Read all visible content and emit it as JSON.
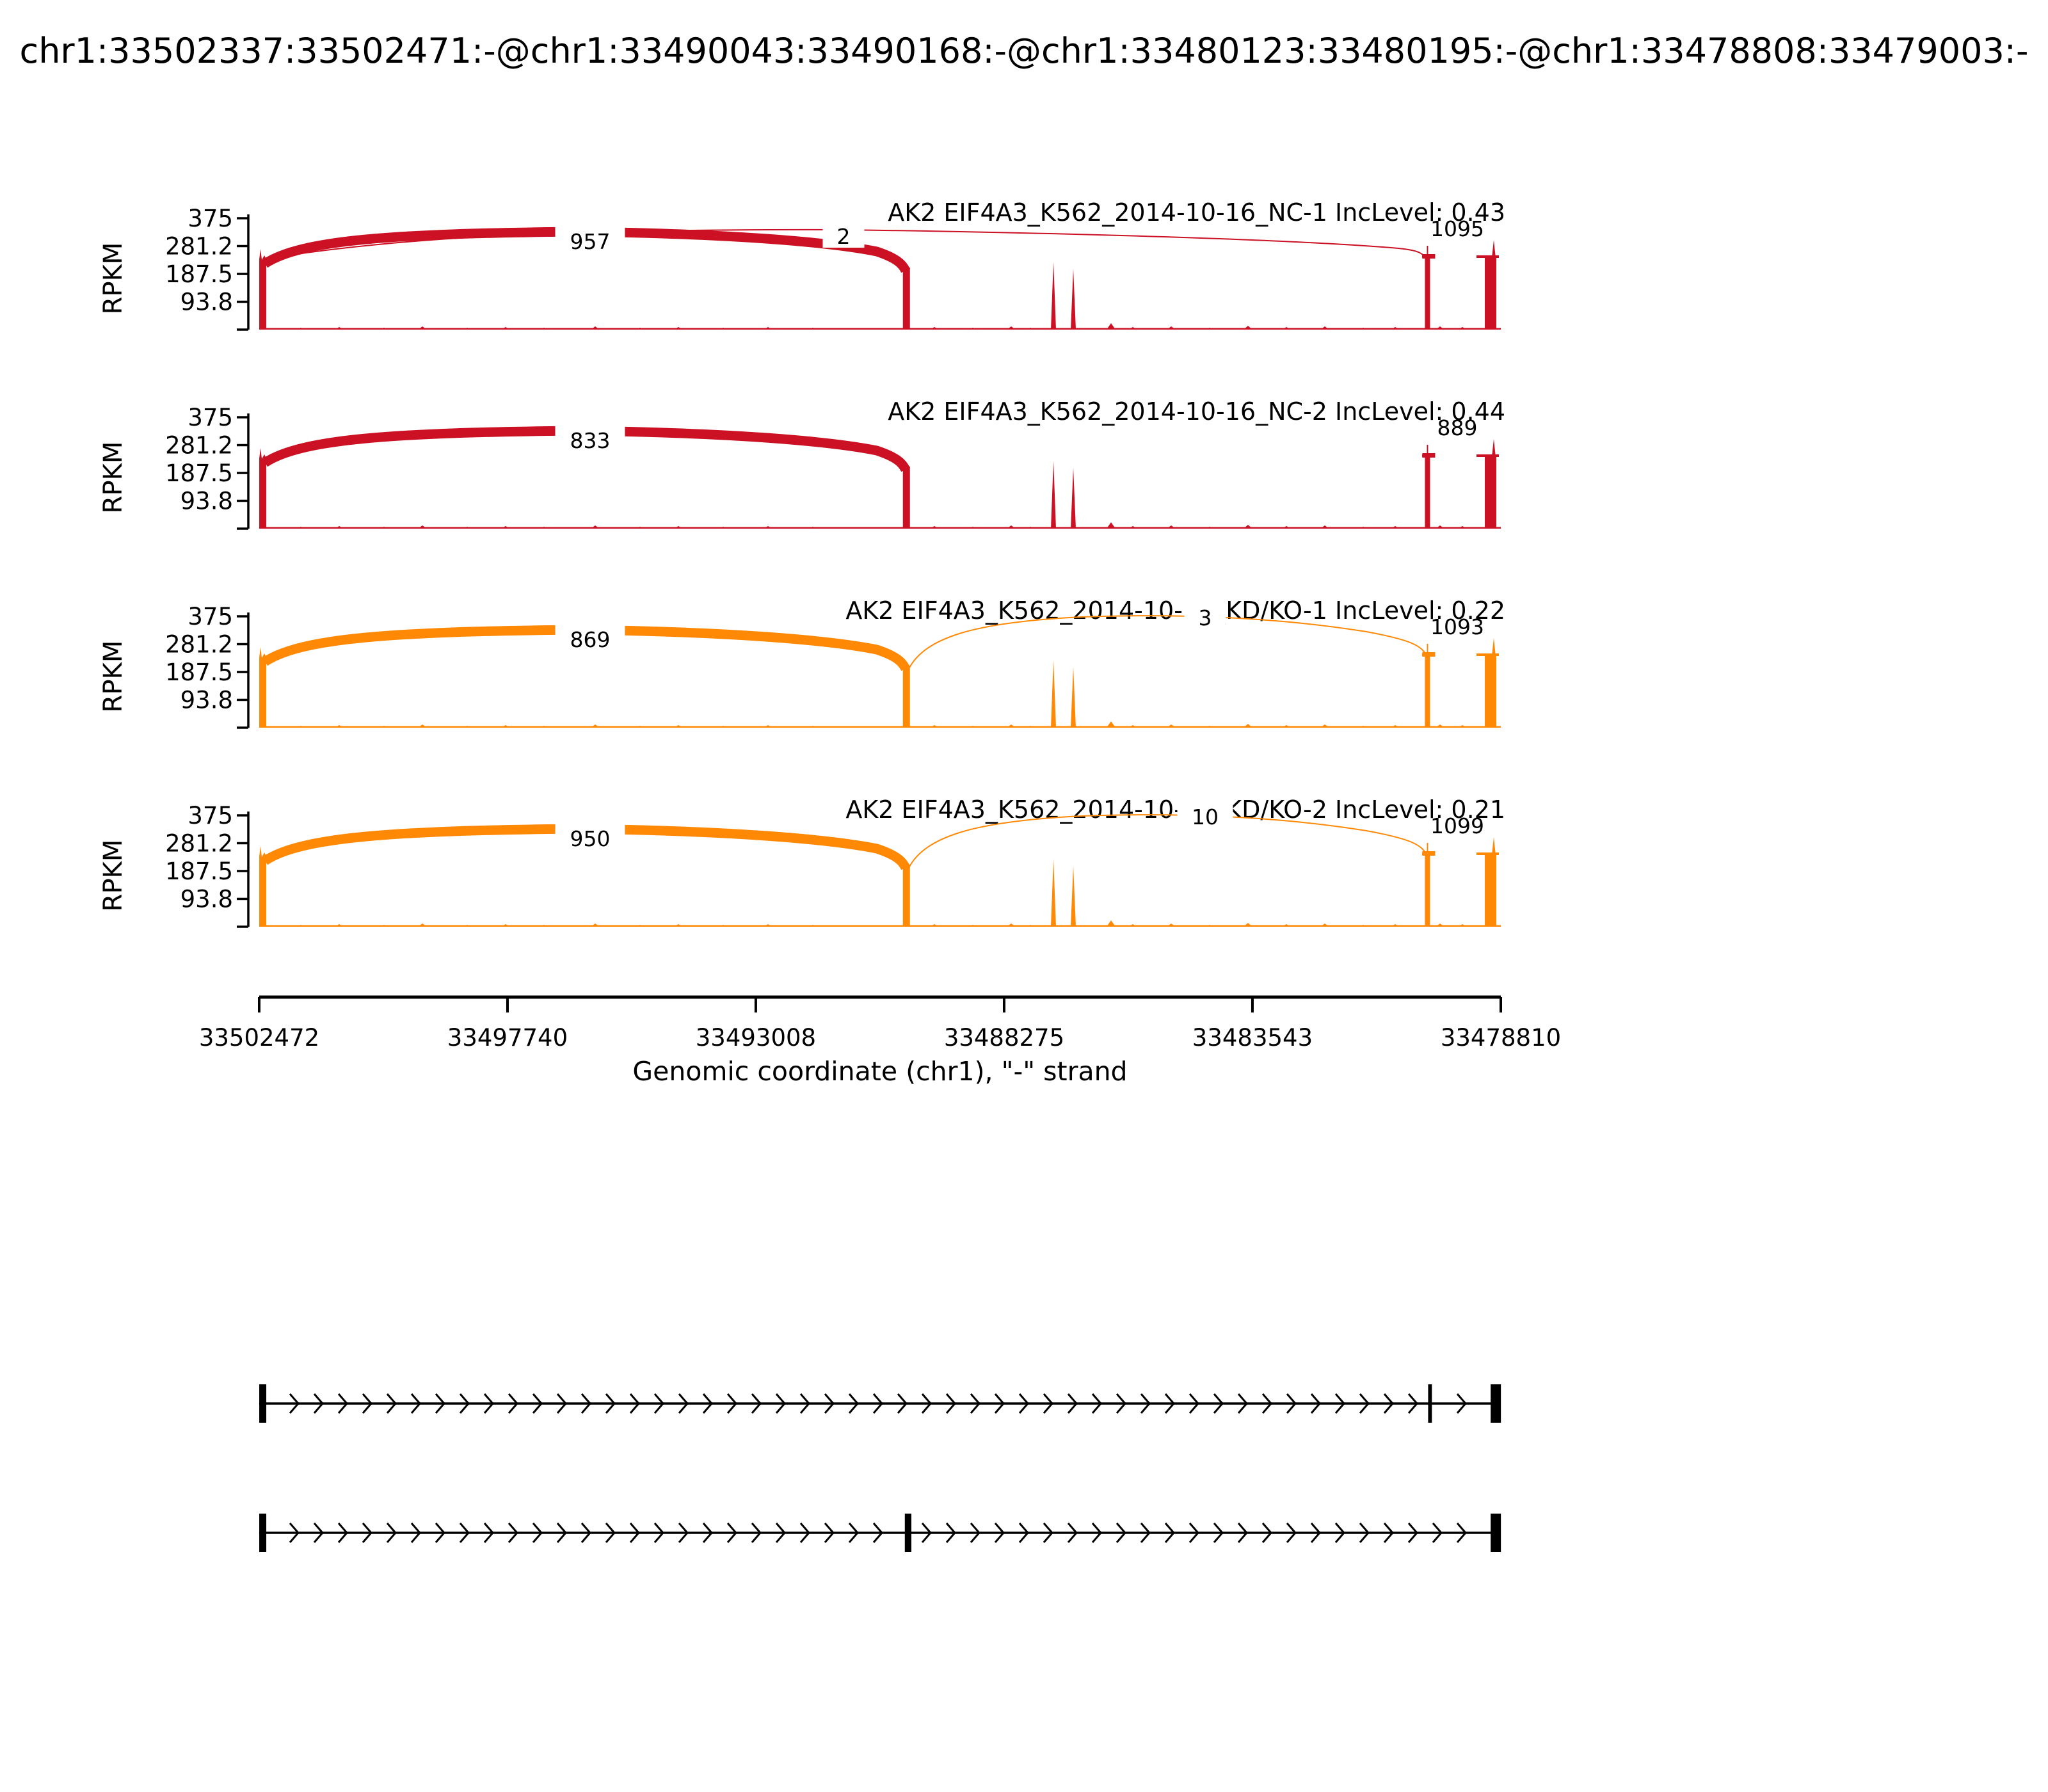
{
  "title": "chr1:33502337:33502471:-@chr1:33490043:33490168:-@chr1:33480123:33480195:-@chr1:33478808:33479003:-",
  "chart_data": {
    "type": "sashimi",
    "gene": "AK2",
    "chromosome": "chr1",
    "strand": "-",
    "xlabel": "Genomic coordinate (chr1), \"-\" strand",
    "ylabel": "RPKM",
    "ymax_rpkm": 375,
    "ytick_labels": [
      "375",
      "281.2",
      "187.5",
      "93.8"
    ],
    "xticks": [
      33502472,
      33497740,
      33493008,
      33488275,
      33483543,
      33478810
    ],
    "x_range_bp": [
      33502472,
      33478810
    ],
    "exons_bp": {
      "upstream": [
        33502337,
        33502471
      ],
      "mxe_exon_1": [
        33490043,
        33490168
      ],
      "mxe_exon_2": [
        33480123,
        33480195
      ],
      "downstream": [
        33478808,
        33479003
      ]
    },
    "tracks": [
      {
        "id": "NC-1",
        "label": "AK2 EIF4A3_K562_2014-10-16_NC-1 IncLevel: 0.43",
        "inc_level": "0.43",
        "color": "#CB1123",
        "junctions": [
          {
            "from": "upstream",
            "to": "mxe_exon_1",
            "count": 957,
            "style": "thick"
          },
          {
            "from": "upstream",
            "to": "mxe_exon_2",
            "count": 2,
            "style": "hairline-low"
          },
          {
            "from": "mxe_exon_2",
            "to": "downstream",
            "count": 1095,
            "style": "staple"
          }
        ]
      },
      {
        "id": "NC-2",
        "label": "AK2 EIF4A3_K562_2014-10-16_NC-2 IncLevel: 0.44",
        "inc_level": "0.44",
        "color": "#CB1123",
        "junctions": [
          {
            "from": "upstream",
            "to": "mxe_exon_1",
            "count": 833,
            "style": "thick"
          },
          {
            "from": "mxe_exon_2",
            "to": "downstream",
            "count": 889,
            "style": "staple"
          }
        ]
      },
      {
        "id": "KD/KO-1",
        "label": "AK2 EIF4A3_K562_2014-10-16_KD/KO-1 IncLevel: 0.22",
        "inc_level": "0.22",
        "color": "#FF8805",
        "junctions": [
          {
            "from": "upstream",
            "to": "mxe_exon_1",
            "count": 869,
            "style": "thick"
          },
          {
            "from": "mxe_exon_1",
            "to": "mxe_exon_2",
            "count": 3,
            "style": "hairline-high"
          },
          {
            "from": "mxe_exon_2",
            "to": "downstream",
            "count": 1093,
            "style": "staple"
          }
        ]
      },
      {
        "id": "KD/KO-2",
        "label": "AK2 EIF4A3_K562_2014-10-16_KD/KO-2 IncLevel: 0.21",
        "inc_level": "0.21",
        "color": "#FF8805",
        "junctions": [
          {
            "from": "upstream",
            "to": "mxe_exon_1",
            "count": 950,
            "style": "thick"
          },
          {
            "from": "mxe_exon_1",
            "to": "mxe_exon_2",
            "count": 10,
            "style": "hairline-high"
          },
          {
            "from": "mxe_exon_2",
            "to": "downstream",
            "count": 1099,
            "style": "staple"
          }
        ]
      }
    ],
    "isoforms": [
      {
        "name": "isoform-mxe2",
        "exons": [
          "upstream",
          "mxe_exon_2",
          "downstream"
        ]
      },
      {
        "name": "isoform-mxe1",
        "exons": [
          "upstream",
          "mxe_exon_1",
          "downstream"
        ]
      }
    ]
  }
}
